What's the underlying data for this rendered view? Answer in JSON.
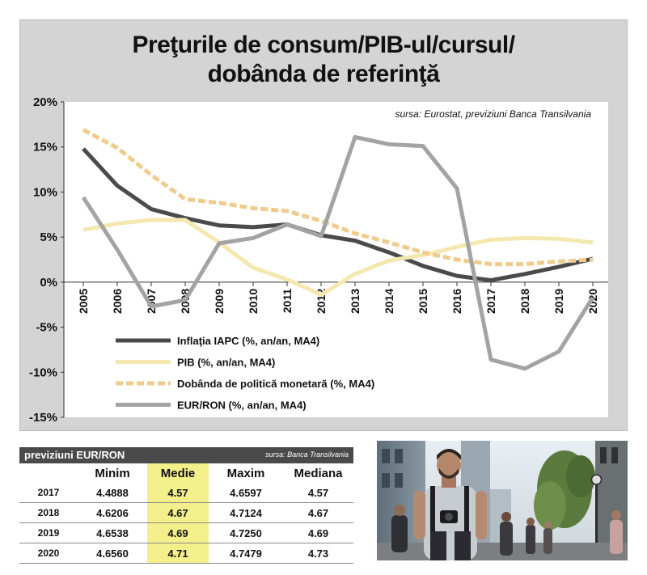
{
  "title": [
    "Preţurile de consum/PIB-ul/cursul/",
    "dobânda de referinţă"
  ],
  "source_note": "sursa: Eurostat, previziuni Banca Transilvania",
  "chart_data": {
    "type": "line",
    "title": "Preţurile de consum/PIB-ul/cursul/ dobânda de referinţă",
    "x": [
      "2005",
      "2006",
      "2007",
      "2008",
      "2009",
      "2010",
      "2011",
      "2012",
      "2013",
      "2014",
      "2015",
      "2016",
      "2017",
      "2018",
      "2019",
      "2020"
    ],
    "ylim": [
      -15,
      20
    ],
    "yticks": [
      -15,
      -10,
      -5,
      0,
      5,
      10,
      15,
      20
    ],
    "ytick_labels": [
      "-15%",
      "-10%",
      "-5%",
      "0%",
      "5%",
      "10%",
      "15%",
      "20%"
    ],
    "grid": false,
    "legend_position": "bottom-left",
    "series": [
      {
        "name": "Inflaţia IAPC (%, an/an, MA4)",
        "color": "#4a4a4a",
        "style": "solid",
        "values": [
          14.8,
          10.7,
          8.1,
          7.1,
          6.3,
          6.1,
          6.4,
          5.2,
          4.6,
          3.3,
          1.8,
          0.7,
          0.2,
          0.9,
          1.7,
          2.6
        ]
      },
      {
        "name": "PIB (%, an/an, MA4)",
        "color": "#f5e7b0",
        "style": "solid",
        "values": [
          5.8,
          6.5,
          6.9,
          6.9,
          4.4,
          1.6,
          0.3,
          -1.4,
          0.9,
          2.4,
          3.0,
          3.9,
          4.7,
          4.9,
          4.8,
          4.4
        ]
      },
      {
        "name": "Dobânda  de politică monetară (%, MA4)",
        "color": "#f0cc8c",
        "style": "dashed",
        "values": [
          16.9,
          14.9,
          11.9,
          9.2,
          8.8,
          8.2,
          7.9,
          6.8,
          5.4,
          4.4,
          3.3,
          2.5,
          2.0,
          2.0,
          2.3,
          2.5
        ]
      },
      {
        "name": "EUR/RON (%, an/an, MA4)",
        "color": "#a3a3a3",
        "style": "solid",
        "values": [
          9.4,
          3.6,
          -2.7,
          -2.0,
          4.3,
          4.9,
          6.4,
          5.1,
          16.1,
          15.3,
          15.1,
          10.4,
          -8.6,
          -9.6,
          -7.7,
          -1.7
        ]
      }
    ]
  },
  "colors": {
    "panel_bg": "#d4d4d4",
    "table_header_bg": "#4a4a4a",
    "median_highlight": "#f3ef8a"
  },
  "table": {
    "title": "previziuni EUR/RON",
    "source": "sursa: Banca Transilvania",
    "columns": [
      "",
      "Minim",
      "Medie",
      "Maxim",
      "Mediana"
    ],
    "rows": [
      [
        "2017",
        "4.4888",
        "4.57",
        "4.6597",
        "4.57"
      ],
      [
        "2018",
        "4.6206",
        "4.67",
        "4.7124",
        "4.67"
      ],
      [
        "2019",
        "4.6538",
        "4.69",
        "4.7250",
        "4.69"
      ],
      [
        "2020",
        "4.6560",
        "4.71",
        "4.7479",
        "4.73"
      ]
    ]
  }
}
